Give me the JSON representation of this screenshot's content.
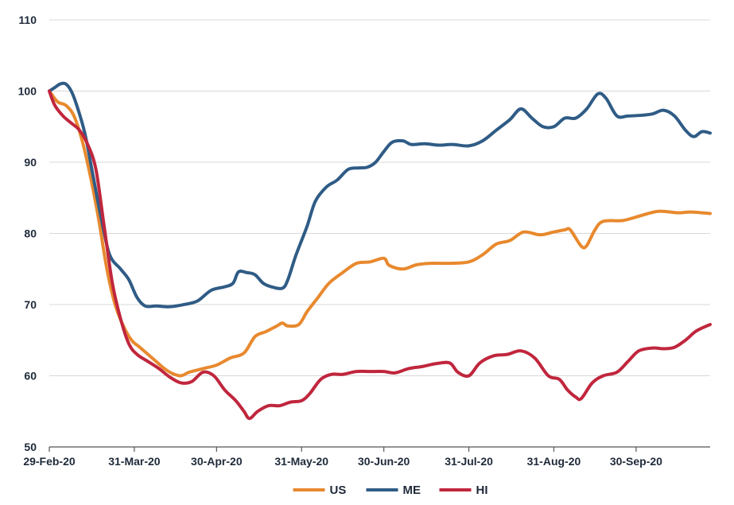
{
  "chart_data": {
    "type": "line",
    "title": "",
    "xlabel": "",
    "ylabel": "",
    "ylim": [
      50,
      110
    ],
    "yticks": [
      50,
      60,
      70,
      80,
      90,
      100,
      110
    ],
    "grid": "horizontal",
    "legend_position": "bottom",
    "x_tick_labels": [
      {
        "label": "29-Feb-20",
        "date": "2020-02-29"
      },
      {
        "label": "31-Mar-20",
        "date": "2020-03-31"
      },
      {
        "label": "30-Apr-20",
        "date": "2020-04-30"
      },
      {
        "label": "31-May-20",
        "date": "2020-05-31"
      },
      {
        "label": "30-Jun-20",
        "date": "2020-06-30"
      },
      {
        "label": "31-Jul-20",
        "date": "2020-07-31"
      },
      {
        "label": "31-Aug-20",
        "date": "2020-08-31"
      },
      {
        "label": "30-Sep-20",
        "date": "2020-09-30"
      }
    ],
    "x_range": [
      "2020-02-29",
      "2020-10-27"
    ],
    "series": [
      {
        "name": "US",
        "color": "#E8892E",
        "points": [
          [
            "2020-02-29",
            100
          ],
          [
            "2020-03-03",
            98.5
          ],
          [
            "2020-03-06",
            98
          ],
          [
            "2020-03-09",
            96.5
          ],
          [
            "2020-03-12",
            93
          ],
          [
            "2020-03-15",
            88
          ],
          [
            "2020-03-18",
            82
          ],
          [
            "2020-03-21",
            75
          ],
          [
            "2020-03-24",
            70
          ],
          [
            "2020-03-27",
            67
          ],
          [
            "2020-03-30",
            65
          ],
          [
            "2020-04-02",
            64
          ],
          [
            "2020-04-05",
            63
          ],
          [
            "2020-04-08",
            62
          ],
          [
            "2020-04-11",
            61
          ],
          [
            "2020-04-14",
            60.3
          ],
          [
            "2020-04-17",
            60
          ],
          [
            "2020-04-20",
            60.5
          ],
          [
            "2020-04-25",
            61
          ],
          [
            "2020-04-30",
            61.5
          ],
          [
            "2020-05-05",
            62.5
          ],
          [
            "2020-05-10",
            63.2
          ],
          [
            "2020-05-14",
            65.5
          ],
          [
            "2020-05-18",
            66.2
          ],
          [
            "2020-05-22",
            67
          ],
          [
            "2020-05-24",
            67.4
          ],
          [
            "2020-05-26",
            67
          ],
          [
            "2020-05-30",
            67.2
          ],
          [
            "2020-06-02",
            69
          ],
          [
            "2020-06-06",
            71
          ],
          [
            "2020-06-10",
            73
          ],
          [
            "2020-06-15",
            74.5
          ],
          [
            "2020-06-20",
            75.8
          ],
          [
            "2020-06-25",
            76
          ],
          [
            "2020-06-30",
            76.5
          ],
          [
            "2020-07-02",
            75.5
          ],
          [
            "2020-07-07",
            75
          ],
          [
            "2020-07-12",
            75.6
          ],
          [
            "2020-07-17",
            75.8
          ],
          [
            "2020-07-24",
            75.8
          ],
          [
            "2020-07-31",
            76
          ],
          [
            "2020-08-05",
            77
          ],
          [
            "2020-08-10",
            78.5
          ],
          [
            "2020-08-15",
            79
          ],
          [
            "2020-08-20",
            80.2
          ],
          [
            "2020-08-26",
            79.8
          ],
          [
            "2020-08-31",
            80.2
          ],
          [
            "2020-09-04",
            80.5
          ],
          [
            "2020-09-06",
            80.5
          ],
          [
            "2020-09-10",
            78.2
          ],
          [
            "2020-09-12",
            78.3
          ],
          [
            "2020-09-15",
            80.5
          ],
          [
            "2020-09-18",
            81.7
          ],
          [
            "2020-09-25",
            81.8
          ],
          [
            "2020-09-30",
            82.3
          ],
          [
            "2020-10-08",
            83.1
          ],
          [
            "2020-10-15",
            82.9
          ],
          [
            "2020-10-20",
            83
          ],
          [
            "2020-10-27",
            82.8
          ]
        ]
      },
      {
        "name": "ME",
        "color": "#2F5C86",
        "points": [
          [
            "2020-02-29",
            100
          ],
          [
            "2020-03-02",
            100.5
          ],
          [
            "2020-03-04",
            101
          ],
          [
            "2020-03-06",
            101
          ],
          [
            "2020-03-08",
            100
          ],
          [
            "2020-03-10",
            98
          ],
          [
            "2020-03-13",
            94
          ],
          [
            "2020-03-16",
            88
          ],
          [
            "2020-03-19",
            82
          ],
          [
            "2020-03-22",
            77
          ],
          [
            "2020-03-26",
            75
          ],
          [
            "2020-03-29",
            73.5
          ],
          [
            "2020-04-01",
            71
          ],
          [
            "2020-04-04",
            69.8
          ],
          [
            "2020-04-08",
            69.8
          ],
          [
            "2020-04-13",
            69.7
          ],
          [
            "2020-04-18",
            70
          ],
          [
            "2020-04-23",
            70.5
          ],
          [
            "2020-04-28",
            72
          ],
          [
            "2020-05-03",
            72.5
          ],
          [
            "2020-05-06",
            73
          ],
          [
            "2020-05-08",
            74.6
          ],
          [
            "2020-05-11",
            74.5
          ],
          [
            "2020-05-14",
            74.2
          ],
          [
            "2020-05-17",
            73
          ],
          [
            "2020-05-20",
            72.5
          ],
          [
            "2020-05-24",
            72.3
          ],
          [
            "2020-05-26",
            73.5
          ],
          [
            "2020-05-29",
            77
          ],
          [
            "2020-06-02",
            81
          ],
          [
            "2020-06-05",
            84.5
          ],
          [
            "2020-06-09",
            86.5
          ],
          [
            "2020-06-13",
            87.5
          ],
          [
            "2020-06-17",
            89
          ],
          [
            "2020-06-21",
            89.2
          ],
          [
            "2020-06-24",
            89.3
          ],
          [
            "2020-06-27",
            90
          ],
          [
            "2020-06-30",
            91.5
          ],
          [
            "2020-07-03",
            92.8
          ],
          [
            "2020-07-07",
            93
          ],
          [
            "2020-07-10",
            92.5
          ],
          [
            "2020-07-15",
            92.6
          ],
          [
            "2020-07-20",
            92.4
          ],
          [
            "2020-07-25",
            92.5
          ],
          [
            "2020-07-31",
            92.3
          ],
          [
            "2020-08-05",
            93
          ],
          [
            "2020-08-10",
            94.5
          ],
          [
            "2020-08-15",
            96
          ],
          [
            "2020-08-19",
            97.5
          ],
          [
            "2020-08-23",
            96.2
          ],
          [
            "2020-08-27",
            95
          ],
          [
            "2020-08-31",
            95
          ],
          [
            "2020-09-04",
            96.2
          ],
          [
            "2020-09-08",
            96.2
          ],
          [
            "2020-09-12",
            97.5
          ],
          [
            "2020-09-16",
            99.6
          ],
          [
            "2020-09-19",
            99
          ],
          [
            "2020-09-23",
            96.5
          ],
          [
            "2020-09-27",
            96.5
          ],
          [
            "2020-10-02",
            96.6
          ],
          [
            "2020-10-06",
            96.8
          ],
          [
            "2020-10-10",
            97.3
          ],
          [
            "2020-10-14",
            96.5
          ],
          [
            "2020-10-18",
            94.5
          ],
          [
            "2020-10-21",
            93.6
          ],
          [
            "2020-10-24",
            94.3
          ],
          [
            "2020-10-27",
            94.1
          ]
        ]
      },
      {
        "name": "HI",
        "color": "#C0263D",
        "points": [
          [
            "2020-02-29",
            100
          ],
          [
            "2020-03-02",
            98
          ],
          [
            "2020-03-05",
            96.5
          ],
          [
            "2020-03-08",
            95.5
          ],
          [
            "2020-03-11",
            94.5
          ],
          [
            "2020-03-14",
            92.5
          ],
          [
            "2020-03-17",
            89
          ],
          [
            "2020-03-20",
            81
          ],
          [
            "2020-03-23",
            73
          ],
          [
            "2020-03-26",
            68
          ],
          [
            "2020-03-29",
            64.5
          ],
          [
            "2020-04-01",
            63
          ],
          [
            "2020-04-05",
            62
          ],
          [
            "2020-04-09",
            61
          ],
          [
            "2020-04-13",
            59.8
          ],
          [
            "2020-04-17",
            59
          ],
          [
            "2020-04-21",
            59.2
          ],
          [
            "2020-04-25",
            60.5
          ],
          [
            "2020-04-29",
            60
          ],
          [
            "2020-05-03",
            58
          ],
          [
            "2020-05-07",
            56.5
          ],
          [
            "2020-05-10",
            55
          ],
          [
            "2020-05-12",
            54
          ],
          [
            "2020-05-15",
            55
          ],
          [
            "2020-05-19",
            55.8
          ],
          [
            "2020-05-23",
            55.8
          ],
          [
            "2020-05-27",
            56.3
          ],
          [
            "2020-05-31",
            56.5
          ],
          [
            "2020-06-03",
            57.5
          ],
          [
            "2020-06-07",
            59.5
          ],
          [
            "2020-06-11",
            60.2
          ],
          [
            "2020-06-15",
            60.2
          ],
          [
            "2020-06-20",
            60.6
          ],
          [
            "2020-06-25",
            60.6
          ],
          [
            "2020-06-30",
            60.6
          ],
          [
            "2020-07-04",
            60.4
          ],
          [
            "2020-07-09",
            61
          ],
          [
            "2020-07-14",
            61.3
          ],
          [
            "2020-07-19",
            61.7
          ],
          [
            "2020-07-24",
            61.8
          ],
          [
            "2020-07-27",
            60.5
          ],
          [
            "2020-07-31",
            60
          ],
          [
            "2020-08-04",
            61.8
          ],
          [
            "2020-08-09",
            62.8
          ],
          [
            "2020-08-14",
            63
          ],
          [
            "2020-08-19",
            63.5
          ],
          [
            "2020-08-24",
            62.5
          ],
          [
            "2020-08-29",
            60
          ],
          [
            "2020-09-02",
            59.5
          ],
          [
            "2020-09-05",
            58
          ],
          [
            "2020-09-08",
            57
          ],
          [
            "2020-09-10",
            56.8
          ],
          [
            "2020-09-14",
            59
          ],
          [
            "2020-09-18",
            60
          ],
          [
            "2020-09-23",
            60.5
          ],
          [
            "2020-09-27",
            62
          ],
          [
            "2020-10-01",
            63.5
          ],
          [
            "2020-10-06",
            63.9
          ],
          [
            "2020-10-10",
            63.8
          ],
          [
            "2020-10-14",
            64
          ],
          [
            "2020-10-18",
            65
          ],
          [
            "2020-10-22",
            66.3
          ],
          [
            "2020-10-27",
            67.2
          ]
        ]
      }
    ]
  }
}
